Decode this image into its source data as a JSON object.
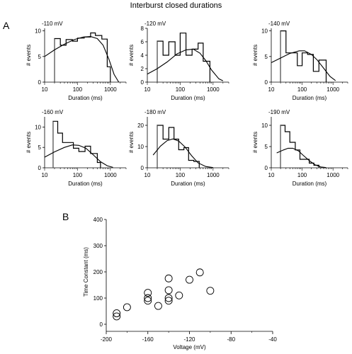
{
  "figure": {
    "title": "Interburst closed durations",
    "panel_a": "A",
    "panel_b": "B"
  },
  "chart_data": [
    {
      "type": "histogram",
      "panel": "A",
      "annotation": "-110 mV",
      "xlabel": "Duration (ms)",
      "ylabel": "# events",
      "xscale": "log",
      "xlim": [
        10,
        3000
      ],
      "ylim": [
        0,
        10.5
      ],
      "xticks": [
        10,
        100,
        1000
      ],
      "xtick_labels": [
        "10",
        "100",
        "1000"
      ],
      "yticks": [
        0,
        5,
        10
      ],
      "ytick_labels": [
        "0",
        "5",
        "10"
      ],
      "bins": [
        [
          20,
          8.5
        ],
        [
          30,
          7.2
        ],
        [
          45,
          8.3
        ],
        [
          70,
          8.0
        ],
        [
          100,
          8.6
        ],
        [
          160,
          8.8
        ],
        [
          250,
          9.6
        ],
        [
          350,
          9.1
        ],
        [
          550,
          8.4
        ],
        [
          800,
          3.0
        ],
        [
          1000,
          0
        ]
      ],
      "curve": [
        [
          10,
          5.0
        ],
        [
          20,
          6.3
        ],
        [
          40,
          7.4
        ],
        [
          80,
          8.3
        ],
        [
          150,
          8.8
        ],
        [
          250,
          8.9
        ],
        [
          400,
          8.5
        ],
        [
          600,
          7.2
        ],
        [
          900,
          4.5
        ],
        [
          1300,
          1.5
        ],
        [
          1800,
          0
        ]
      ]
    },
    {
      "type": "histogram",
      "panel": "A",
      "annotation": "-120 mV",
      "xlabel": "Duration (ms)",
      "ylabel": "# events",
      "xscale": "log",
      "xlim": [
        10,
        3000
      ],
      "ylim": [
        0,
        8
      ],
      "xticks": [
        10,
        100,
        1000
      ],
      "xtick_labels": [
        "10",
        "100",
        "1000"
      ],
      "yticks": [
        0,
        2,
        4,
        6,
        8
      ],
      "ytick_labels": [
        "0",
        "2",
        "4",
        "6",
        "8"
      ],
      "bins": [
        [
          20,
          6.1
        ],
        [
          30,
          4.0
        ],
        [
          45,
          6.0
        ],
        [
          70,
          4.0
        ],
        [
          100,
          7.3
        ],
        [
          150,
          4.0
        ],
        [
          230,
          4.9
        ],
        [
          350,
          5.8
        ],
        [
          500,
          3.1
        ],
        [
          800,
          0
        ]
      ],
      "curve": [
        [
          10,
          1.2
        ],
        [
          20,
          2.0
        ],
        [
          40,
          3.0
        ],
        [
          80,
          4.2
        ],
        [
          150,
          4.8
        ],
        [
          250,
          4.9
        ],
        [
          400,
          4.3
        ],
        [
          600,
          3.2
        ],
        [
          900,
          1.8
        ],
        [
          1500,
          0.5
        ],
        [
          2000,
          0.2
        ]
      ]
    },
    {
      "type": "histogram",
      "panel": "A",
      "annotation": "-140 mV",
      "xlabel": "Duration (ms)",
      "ylabel": "# events",
      "xscale": "log",
      "xlim": [
        10,
        3000
      ],
      "ylim": [
        0,
        10.5
      ],
      "xticks": [
        10,
        100,
        1000
      ],
      "xtick_labels": [
        "10",
        "100",
        "1000"
      ],
      "yticks": [
        0,
        5,
        10
      ],
      "ytick_labels": [
        "0",
        "5",
        "10"
      ],
      "bins": [
        [
          20,
          10
        ],
        [
          30,
          5.7
        ],
        [
          45,
          5.7
        ],
        [
          70,
          3.2
        ],
        [
          100,
          5.7
        ],
        [
          150,
          5.4
        ],
        [
          230,
          2.1
        ],
        [
          350,
          4.3
        ],
        [
          600,
          0
        ]
      ],
      "curve": [
        [
          10,
          3.8
        ],
        [
          20,
          4.7
        ],
        [
          40,
          5.6
        ],
        [
          80,
          6.1
        ],
        [
          120,
          6.1
        ],
        [
          200,
          5.4
        ],
        [
          300,
          4.4
        ],
        [
          500,
          2.7
        ],
        [
          800,
          1.1
        ],
        [
          1200,
          0.3
        ]
      ]
    },
    {
      "type": "histogram",
      "panel": "A",
      "annotation": "-160 mV",
      "xlabel": "Duration (ms)",
      "ylabel": "# events",
      "xscale": "log",
      "xlim": [
        10,
        3000
      ],
      "ylim": [
        0,
        12.5
      ],
      "xticks": [
        10,
        100,
        1000
      ],
      "xtick_labels": [
        "10",
        "100",
        "1000"
      ],
      "yticks": [
        0,
        5,
        10
      ],
      "ytick_labels": [
        "0",
        "5",
        "10"
      ],
      "bins": [
        [
          18,
          11.4
        ],
        [
          25,
          8.5
        ],
        [
          35,
          6.2
        ],
        [
          50,
          6.2
        ],
        [
          75,
          4.8
        ],
        [
          110,
          4.0
        ],
        [
          170,
          5.3
        ],
        [
          250,
          3.5
        ],
        [
          400,
          1.3
        ],
        [
          500,
          0
        ]
      ],
      "curve": [
        [
          10,
          2.6
        ],
        [
          20,
          3.9
        ],
        [
          40,
          5.0
        ],
        [
          70,
          5.6
        ],
        [
          110,
          5.5
        ],
        [
          180,
          4.8
        ],
        [
          300,
          3.2
        ],
        [
          500,
          1.5
        ],
        [
          800,
          0.5
        ],
        [
          1200,
          0.1
        ]
      ]
    },
    {
      "type": "histogram",
      "panel": "A",
      "annotation": "-180 mV",
      "xlabel": "Duration (ms)",
      "ylabel": "# events",
      "xscale": "log",
      "xlim": [
        10,
        3000
      ],
      "ylim": [
        0,
        24
      ],
      "xticks": [
        10,
        100,
        1000
      ],
      "xtick_labels": [
        "10",
        "100",
        "1000"
      ],
      "yticks": [
        0,
        10,
        20
      ],
      "ytick_labels": [
        "0",
        "10",
        "20"
      ],
      "bins": [
        [
          20,
          20
        ],
        [
          30,
          13.5
        ],
        [
          45,
          19
        ],
        [
          65,
          13.5
        ],
        [
          90,
          8.5
        ],
        [
          130,
          9.5
        ],
        [
          180,
          3.5
        ],
        [
          260,
          3.0
        ],
        [
          380,
          0
        ]
      ],
      "curve": [
        [
          15,
          6.0
        ],
        [
          25,
          10.2
        ],
        [
          40,
          12.8
        ],
        [
          60,
          13.6
        ],
        [
          90,
          12.6
        ],
        [
          140,
          9.8
        ],
        [
          220,
          5.8
        ],
        [
          350,
          2.3
        ],
        [
          600,
          0.6
        ],
        [
          1000,
          0.1
        ]
      ]
    },
    {
      "type": "histogram",
      "panel": "A",
      "annotation": "-190 mV",
      "xlabel": "Duration (ms)",
      "ylabel": "# events",
      "xscale": "log",
      "xlim": [
        10,
        3000
      ],
      "ylim": [
        0,
        12
      ],
      "xticks": [
        10,
        100,
        1000
      ],
      "xtick_labels": [
        "10",
        "100",
        "1000"
      ],
      "yticks": [
        0,
        5,
        10
      ],
      "ytick_labels": [
        "0",
        "5",
        "10"
      ],
      "bins": [
        [
          20,
          10
        ],
        [
          28,
          8.5
        ],
        [
          40,
          6.0
        ],
        [
          60,
          4.2
        ],
        [
          85,
          2.0
        ],
        [
          120,
          2.0
        ],
        [
          170,
          1.1
        ],
        [
          240,
          0.6
        ],
        [
          350,
          0
        ]
      ],
      "curve": [
        [
          15,
          3.5
        ],
        [
          25,
          4.2
        ],
        [
          35,
          4.6
        ],
        [
          50,
          4.6
        ],
        [
          75,
          4.0
        ],
        [
          110,
          2.9
        ],
        [
          170,
          1.7
        ],
        [
          260,
          0.7
        ],
        [
          400,
          0.2
        ],
        [
          600,
          0.05
        ]
      ]
    },
    {
      "type": "scatter",
      "panel": "B",
      "xlabel": "Voltage (mV)",
      "ylabel": "Time Constant (ms)",
      "xlim": [
        -200,
        -40
      ],
      "ylim": [
        0,
        400
      ],
      "xticks": [
        -200,
        -160,
        -120,
        -80,
        -40
      ],
      "xtick_labels": [
        "-200",
        "-160",
        "-120",
        "-80",
        "-40"
      ],
      "yticks": [
        0,
        100,
        200,
        300,
        400
      ],
      "ytick_labels": [
        "0",
        "100",
        "200",
        "300",
        "400"
      ],
      "points": [
        [
          -190,
          42
        ],
        [
          -190,
          30
        ],
        [
          -180,
          65
        ],
        [
          -160,
          120
        ],
        [
          -160,
          100
        ],
        [
          -160,
          90
        ],
        [
          -150,
          70
        ],
        [
          -140,
          175
        ],
        [
          -140,
          130
        ],
        [
          -140,
          100
        ],
        [
          -140,
          90
        ],
        [
          -130,
          110
        ],
        [
          -120,
          170
        ],
        [
          -110,
          198
        ],
        [
          -100,
          128
        ]
      ]
    }
  ]
}
